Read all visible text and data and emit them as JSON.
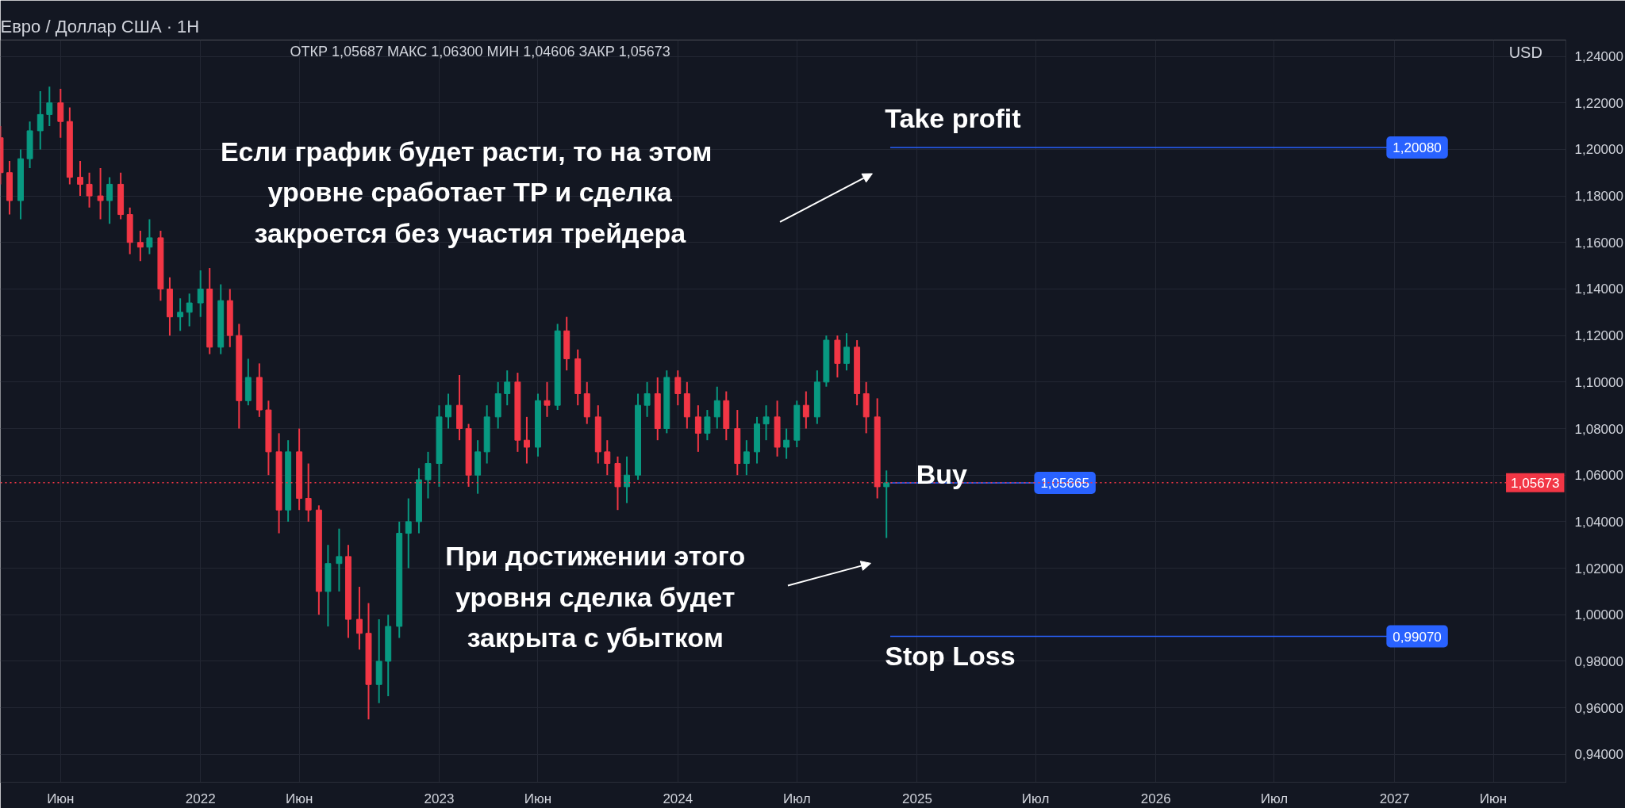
{
  "chart_data": {
    "type": "candlestick",
    "title": "Евро / Доллар США · 1Н",
    "annotations": [
      "ОТКР 1,05687  МАКС 1,06300  МИН 1,04606  ЗАКР 1,05673",
      "USD",
      "Если график  будет расти, то на этом\nуровне сработает TP и сделка\nзакроется без участия трейдера",
      "Take profit",
      "Buy",
      "Stop Loss",
      "При достижении этого\nуровня сделка будет\nзакрыта с убытком"
    ],
    "x": [
      "2021-03-01",
      "2021-03-15",
      "2021-04-01",
      "2021-04-15",
      "2021-05-01",
      "2021-05-15",
      "2021-06-01",
      "2021-06-15",
      "2021-07-01",
      "2021-07-15",
      "2021-08-01",
      "2021-08-15",
      "2021-09-01",
      "2021-09-15",
      "2021-10-01",
      "2021-10-15",
      "2021-11-01",
      "2021-11-15",
      "2021-12-01",
      "2021-12-15",
      "2022-01-01",
      "2022-01-15",
      "2022-02-01",
      "2022-02-15",
      "2022-03-01",
      "2022-03-15",
      "2022-04-01",
      "2022-04-15",
      "2022-05-01",
      "2022-05-15",
      "2022-06-01",
      "2022-06-15",
      "2022-07-01",
      "2022-07-15",
      "2022-08-01",
      "2022-08-15",
      "2022-09-01",
      "2022-09-15",
      "2022-10-01",
      "2022-10-15",
      "2022-11-01",
      "2022-11-15",
      "2022-12-01",
      "2022-12-15",
      "2023-01-01",
      "2023-01-15",
      "2023-02-01",
      "2023-02-15",
      "2023-03-01",
      "2023-03-15",
      "2023-04-01",
      "2023-04-15",
      "2023-05-01",
      "2023-05-15",
      "2023-06-01",
      "2023-06-15",
      "2023-07-01",
      "2023-07-15",
      "2023-08-01",
      "2023-08-15",
      "2023-09-01",
      "2023-09-15",
      "2023-10-01",
      "2023-10-15",
      "2023-11-01",
      "2023-11-15",
      "2023-12-01",
      "2023-12-15",
      "2024-01-01",
      "2024-01-15",
      "2024-02-01",
      "2024-02-15",
      "2024-03-01",
      "2024-03-15",
      "2024-04-01",
      "2024-04-15",
      "2024-05-01",
      "2024-05-15",
      "2024-06-01",
      "2024-06-15",
      "2024-07-01",
      "2024-07-15",
      "2024-08-01",
      "2024-08-15",
      "2024-09-01",
      "2024-09-15",
      "2024-10-01",
      "2024-10-15",
      "2024-11-01",
      "2024-11-15"
    ],
    "ohlc": [
      [
        1.205,
        1.21,
        1.185,
        1.19
      ],
      [
        1.19,
        1.195,
        1.172,
        1.178
      ],
      [
        1.178,
        1.2,
        1.17,
        1.196
      ],
      [
        1.196,
        1.212,
        1.192,
        1.208
      ],
      [
        1.208,
        1.225,
        1.2,
        1.215
      ],
      [
        1.215,
        1.227,
        1.21,
        1.22
      ],
      [
        1.22,
        1.226,
        1.205,
        1.212
      ],
      [
        1.212,
        1.218,
        1.185,
        1.188
      ],
      [
        1.188,
        1.195,
        1.18,
        1.185
      ],
      [
        1.185,
        1.19,
        1.175,
        1.18
      ],
      [
        1.18,
        1.192,
        1.17,
        1.178
      ],
      [
        1.178,
        1.188,
        1.168,
        1.185
      ],
      [
        1.185,
        1.19,
        1.17,
        1.172
      ],
      [
        1.172,
        1.175,
        1.155,
        1.16
      ],
      [
        1.16,
        1.165,
        1.152,
        1.158
      ],
      [
        1.158,
        1.17,
        1.155,
        1.162
      ],
      [
        1.162,
        1.165,
        1.135,
        1.14
      ],
      [
        1.14,
        1.145,
        1.12,
        1.128
      ],
      [
        1.128,
        1.136,
        1.122,
        1.13
      ],
      [
        1.13,
        1.138,
        1.124,
        1.134
      ],
      [
        1.134,
        1.148,
        1.128,
        1.14
      ],
      [
        1.14,
        1.149,
        1.112,
        1.115
      ],
      [
        1.115,
        1.142,
        1.112,
        1.135
      ],
      [
        1.135,
        1.14,
        1.115,
        1.12
      ],
      [
        1.12,
        1.125,
        1.08,
        1.092
      ],
      [
        1.092,
        1.11,
        1.09,
        1.102
      ],
      [
        1.102,
        1.108,
        1.085,
        1.088
      ],
      [
        1.088,
        1.092,
        1.06,
        1.07
      ],
      [
        1.07,
        1.078,
        1.035,
        1.045
      ],
      [
        1.045,
        1.075,
        1.04,
        1.07
      ],
      [
        1.07,
        1.08,
        1.045,
        1.05
      ],
      [
        1.05,
        1.065,
        1.04,
        1.045
      ],
      [
        1.045,
        1.047,
        1.0,
        1.01
      ],
      [
        1.01,
        1.03,
        0.995,
        1.022
      ],
      [
        1.022,
        1.037,
        1.01,
        1.025
      ],
      [
        1.025,
        1.03,
        0.99,
        0.998
      ],
      [
        0.998,
        1.012,
        0.985,
        0.992
      ],
      [
        0.992,
        1.005,
        0.955,
        0.97
      ],
      [
        0.97,
        0.998,
        0.962,
        0.98
      ],
      [
        0.98,
        1.0,
        0.965,
        0.995
      ],
      [
        0.995,
        1.04,
        0.99,
        1.035
      ],
      [
        1.035,
        1.05,
        1.02,
        1.04
      ],
      [
        1.04,
        1.063,
        1.035,
        1.058
      ],
      [
        1.058,
        1.07,
        1.05,
        1.065
      ],
      [
        1.065,
        1.09,
        1.055,
        1.085
      ],
      [
        1.085,
        1.095,
        1.08,
        1.09
      ],
      [
        1.09,
        1.103,
        1.075,
        1.08
      ],
      [
        1.08,
        1.082,
        1.055,
        1.06
      ],
      [
        1.06,
        1.075,
        1.052,
        1.07
      ],
      [
        1.07,
        1.09,
        1.065,
        1.085
      ],
      [
        1.085,
        1.1,
        1.08,
        1.095
      ],
      [
        1.095,
        1.105,
        1.09,
        1.1
      ],
      [
        1.1,
        1.104,
        1.07,
        1.075
      ],
      [
        1.075,
        1.085,
        1.065,
        1.072
      ],
      [
        1.072,
        1.095,
        1.068,
        1.092
      ],
      [
        1.092,
        1.1,
        1.085,
        1.09
      ],
      [
        1.09,
        1.125,
        1.088,
        1.122
      ],
      [
        1.122,
        1.128,
        1.105,
        1.11
      ],
      [
        1.11,
        1.114,
        1.09,
        1.095
      ],
      [
        1.095,
        1.1,
        1.082,
        1.085
      ],
      [
        1.085,
        1.09,
        1.065,
        1.07
      ],
      [
        1.07,
        1.075,
        1.06,
        1.065
      ],
      [
        1.065,
        1.068,
        1.045,
        1.055
      ],
      [
        1.055,
        1.068,
        1.048,
        1.06
      ],
      [
        1.06,
        1.095,
        1.058,
        1.09
      ],
      [
        1.09,
        1.1,
        1.085,
        1.095
      ],
      [
        1.095,
        1.102,
        1.075,
        1.08
      ],
      [
        1.08,
        1.105,
        1.078,
        1.102
      ],
      [
        1.102,
        1.105,
        1.09,
        1.095
      ],
      [
        1.095,
        1.1,
        1.08,
        1.085
      ],
      [
        1.085,
        1.09,
        1.07,
        1.078
      ],
      [
        1.078,
        1.088,
        1.075,
        1.085
      ],
      [
        1.085,
        1.098,
        1.08,
        1.092
      ],
      [
        1.092,
        1.096,
        1.075,
        1.08
      ],
      [
        1.08,
        1.088,
        1.06,
        1.065
      ],
      [
        1.065,
        1.075,
        1.06,
        1.07
      ],
      [
        1.07,
        1.085,
        1.065,
        1.082
      ],
      [
        1.082,
        1.09,
        1.075,
        1.085
      ],
      [
        1.085,
        1.092,
        1.068,
        1.072
      ],
      [
        1.072,
        1.08,
        1.067,
        1.075
      ],
      [
        1.075,
        1.092,
        1.072,
        1.09
      ],
      [
        1.09,
        1.096,
        1.08,
        1.085
      ],
      [
        1.085,
        1.105,
        1.082,
        1.1
      ],
      [
        1.1,
        1.12,
        1.098,
        1.118
      ],
      [
        1.118,
        1.12,
        1.102,
        1.108
      ],
      [
        1.108,
        1.121,
        1.105,
        1.115
      ],
      [
        1.115,
        1.118,
        1.09,
        1.095
      ],
      [
        1.095,
        1.1,
        1.078,
        1.085
      ],
      [
        1.085,
        1.093,
        1.05,
        1.055
      ],
      [
        1.055,
        1.062,
        1.033,
        1.0567
      ]
    ],
    "colors": [
      "#f23645",
      "#f23645",
      "#089981",
      "#089981",
      "#089981",
      "#089981",
      "#f23645",
      "#f23645",
      "#f23645",
      "#f23645",
      "#f23645",
      "#089981",
      "#f23645",
      "#f23645",
      "#f23645",
      "#089981",
      "#f23645",
      "#f23645",
      "#089981",
      "#089981",
      "#089981",
      "#f23645",
      "#089981",
      "#f23645",
      "#f23645",
      "#089981",
      "#f23645",
      "#f23645",
      "#f23645",
      "#089981",
      "#f23645",
      "#f23645",
      "#f23645",
      "#089981",
      "#089981",
      "#f23645",
      "#f23645",
      "#f23645",
      "#089981",
      "#089981",
      "#089981",
      "#089981",
      "#089981",
      "#089981",
      "#089981",
      "#089981",
      "#f23645",
      "#f23645",
      "#089981",
      "#089981",
      "#089981",
      "#089981",
      "#f23645",
      "#f23645",
      "#089981",
      "#f23645",
      "#089981",
      "#f23645",
      "#f23645",
      "#f23645",
      "#f23645",
      "#f23645",
      "#f23645",
      "#089981",
      "#089981",
      "#089981",
      "#f23645",
      "#089981",
      "#f23645",
      "#f23645",
      "#f23645",
      "#089981",
      "#089981",
      "#f23645",
      "#f23645",
      "#089981",
      "#089981",
      "#089981",
      "#f23645",
      "#089981",
      "#089981",
      "#f23645",
      "#089981",
      "#089981",
      "#f23645",
      "#089981",
      "#f23645",
      "#f23645",
      "#f23645",
      "#089981"
    ],
    "xlim": [
      "2021-03-01",
      "2027-09-20"
    ],
    "ylim": [
      0.928,
      1.247
    ],
    "xticks": [
      {
        "value": "2021-06-01",
        "label": "Июн"
      },
      {
        "value": "2022-01-01",
        "label": "2022"
      },
      {
        "value": "2022-06-01",
        "label": "Июн"
      },
      {
        "value": "2023-01-01",
        "label": "2023"
      },
      {
        "value": "2023-06-01",
        "label": "Июн"
      },
      {
        "value": "2024-01-01",
        "label": "2024"
      },
      {
        "value": "2024-07-01",
        "label": "Июл"
      },
      {
        "value": "2025-01-01",
        "label": "2025"
      },
      {
        "value": "2025-07-01",
        "label": "Июл"
      },
      {
        "value": "2026-01-01",
        "label": "2026"
      },
      {
        "value": "2026-07-01",
        "label": "Июл"
      },
      {
        "value": "2027-01-01",
        "label": "2027"
      },
      {
        "value": "2027-06-01",
        "label": "Июн"
      }
    ],
    "yticks": [
      {
        "value": 0.94,
        "label": "0,94000"
      },
      {
        "value": 0.96,
        "label": "0,96000"
      },
      {
        "value": 0.98,
        "label": "0,98000"
      },
      {
        "value": 1.0,
        "label": "1,00000"
      },
      {
        "value": 1.02,
        "label": "1,02000"
      },
      {
        "value": 1.04,
        "label": "1,04000"
      },
      {
        "value": 1.06,
        "label": "1,06000"
      },
      {
        "value": 1.08,
        "label": "1,08000"
      },
      {
        "value": 1.1,
        "label": "1,10000"
      },
      {
        "value": 1.12,
        "label": "1,12000"
      },
      {
        "value": 1.14,
        "label": "1,14000"
      },
      {
        "value": 1.16,
        "label": "1,16000"
      },
      {
        "value": 1.18,
        "label": "1,18000"
      },
      {
        "value": 1.2,
        "label": "1,20000"
      },
      {
        "value": 1.22,
        "label": "1,22000"
      },
      {
        "value": 1.24,
        "label": "1,24000"
      }
    ],
    "ref_lines": [
      {
        "axis": "y",
        "value": 1.2008,
        "label": "1,20080",
        "color": "#2962ff",
        "line_style": "solid"
      },
      {
        "axis": "y",
        "value": 1.05665,
        "label": "1,05665",
        "color": "#2962ff",
        "line_style": "solid"
      },
      {
        "axis": "y",
        "value": 0.9907,
        "label": "0,99070",
        "color": "#2962ff",
        "line_style": "solid"
      },
      {
        "axis": "y",
        "value": 1.05673,
        "label": "1,05673",
        "color": "#f23645",
        "line_style": "dotted"
      }
    ],
    "grid": true
  }
}
